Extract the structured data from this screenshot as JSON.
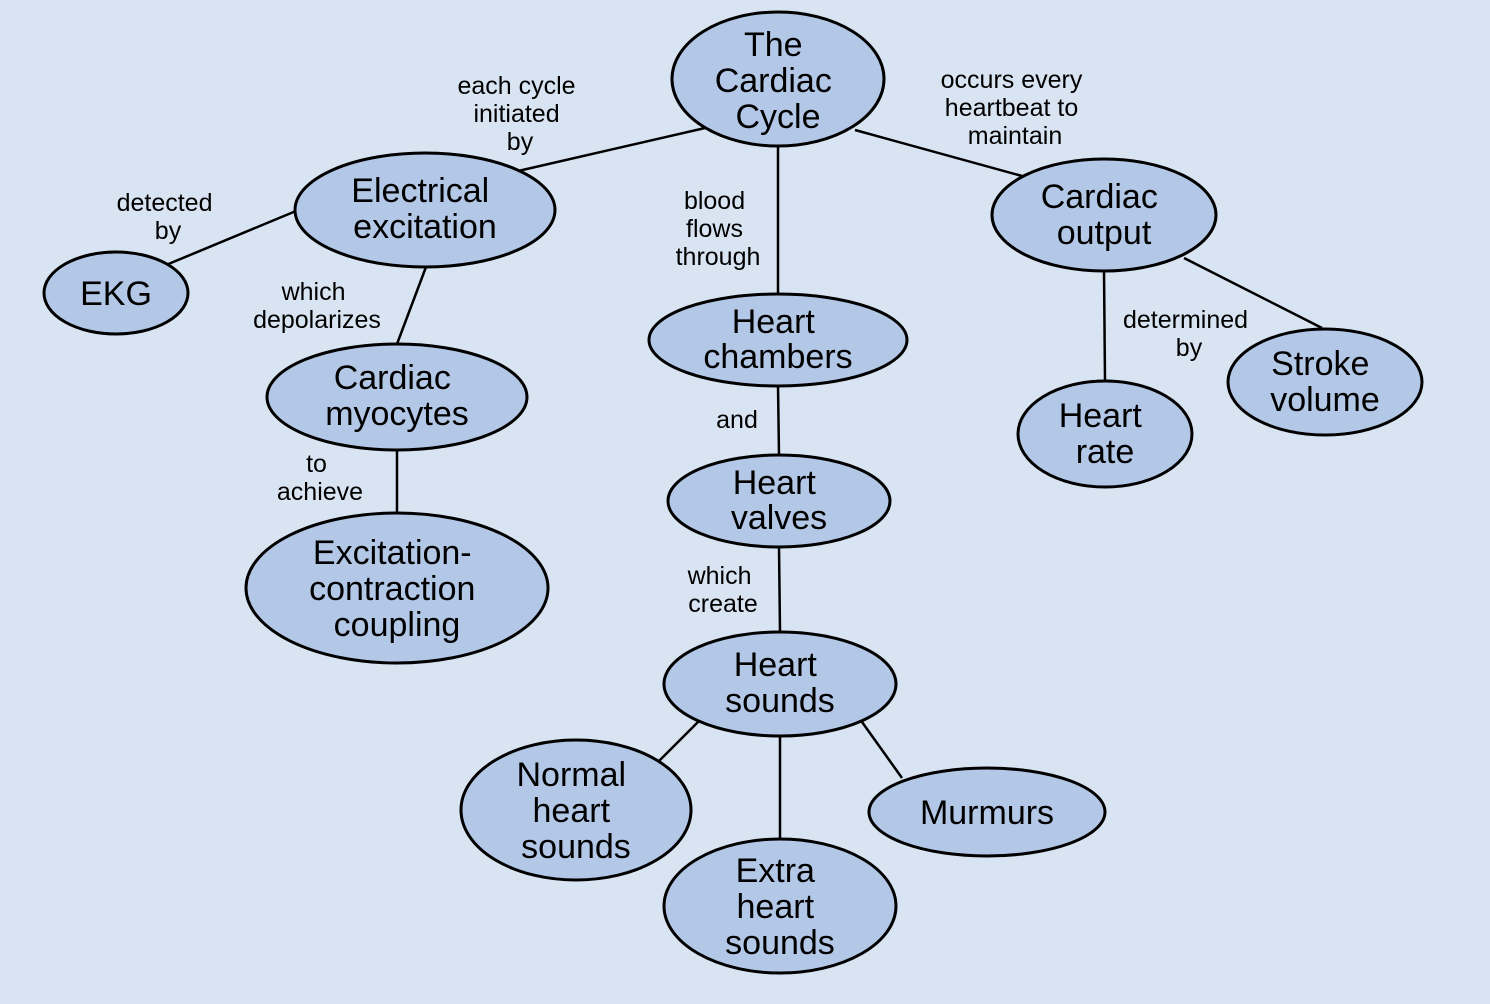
{
  "colors": {
    "background": "#d9e4f2",
    "node_fill": "#b3c7e6",
    "stroke": "#000000"
  },
  "nodes": {
    "cardiac_cycle": [
      "The",
      "Cardiac",
      "Cycle"
    ],
    "electrical_excitation": [
      "Electrical",
      "excitation"
    ],
    "cardiac_output": [
      "Cardiac",
      "output"
    ],
    "ekg": [
      "EKG"
    ],
    "cardiac_myocytes": [
      "Cardiac",
      "myocytes"
    ],
    "ec_coupling": [
      "Excitation-",
      "contraction",
      "coupling"
    ],
    "heart_chambers": [
      "Heart",
      "chambers"
    ],
    "heart_valves": [
      "Heart",
      "valves"
    ],
    "heart_sounds": [
      "Heart",
      "sounds"
    ],
    "normal_heart_sounds": [
      "Normal",
      "heart",
      "sounds"
    ],
    "extra_heart_sounds": [
      "Extra",
      "heart",
      "sounds"
    ],
    "murmurs": [
      "Murmurs"
    ],
    "heart_rate": [
      "Heart",
      "rate"
    ],
    "stroke_volume": [
      "Stroke",
      "volume"
    ]
  },
  "edge_labels": {
    "initiated_by": [
      "each cycle",
      "initiated",
      "by"
    ],
    "maintain": [
      "occurs every",
      "heartbeat to",
      "maintain"
    ],
    "flows_through": [
      "blood",
      "flows",
      "through"
    ],
    "detected_by": [
      "detected",
      "by"
    ],
    "depolarizes": [
      "which",
      "depolarizes"
    ],
    "to_achieve": [
      "to",
      "achieve"
    ],
    "and": [
      "and"
    ],
    "which_create": [
      "which",
      "create"
    ],
    "determined_by": [
      "determined",
      "by"
    ]
  }
}
